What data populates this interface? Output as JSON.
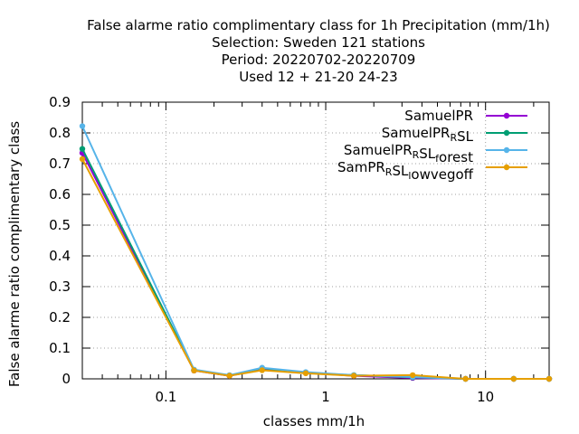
{
  "chart_data": {
    "type": "line",
    "title_lines": [
      "False alarme ratio complimentary class  for 1h Precipitation (mm/1h)",
      "Selection: Sweden    121 stations",
      "Period: 20220702-20220709",
      "Used  12 + 21-20 24-23"
    ],
    "xlabel": "classes mm/1h",
    "ylabel": "False alarme ratio complimentary class",
    "xscale": "log",
    "xlim": [
      0.03,
      25
    ],
    "ylim": [
      0,
      0.9
    ],
    "xticks": [
      {
        "value": 0.1,
        "label": "0.1"
      },
      {
        "value": 1,
        "label": "1"
      },
      {
        "value": 10,
        "label": "10"
      }
    ],
    "yticks": [
      {
        "value": 0,
        "label": "0"
      },
      {
        "value": 0.1,
        "label": "0.1"
      },
      {
        "value": 0.2,
        "label": "0.2"
      },
      {
        "value": 0.3,
        "label": "0.3"
      },
      {
        "value": 0.4,
        "label": "0.4"
      },
      {
        "value": 0.5,
        "label": "0.5"
      },
      {
        "value": 0.6,
        "label": "0.6"
      },
      {
        "value": 0.7,
        "label": "0.7"
      },
      {
        "value": 0.8,
        "label": "0.8"
      },
      {
        "value": 0.9,
        "label": "0.9"
      }
    ],
    "grid": true,
    "legend_position": "top-right",
    "series": [
      {
        "name": "SamuelPR",
        "legend_base": "SamuelPR",
        "legend_sub": "",
        "legend_tail": "",
        "legend_sub2": "",
        "legend_tail2": "",
        "color": "#9400d3",
        "x": [
          0.03,
          0.15,
          0.25,
          0.4,
          0.75,
          1.5,
          3.5,
          7.5,
          15,
          25
        ],
        "y": [
          0.735,
          0.027,
          0.01,
          0.03,
          0.02,
          0.01,
          0.003,
          0.0,
          0.0,
          0.0
        ]
      },
      {
        "name": "SamuelPR_RSL",
        "legend_base": "SamuelPR",
        "legend_sub": "R",
        "legend_tail": "SL",
        "legend_sub2": "",
        "legend_tail2": "",
        "color": "#009e73",
        "x": [
          0.03,
          0.15,
          0.25,
          0.4,
          0.75,
          1.5,
          3.5,
          7.5,
          15,
          25
        ],
        "y": [
          0.748,
          0.028,
          0.011,
          0.035,
          0.02,
          0.012,
          0.005,
          0.0,
          0.0,
          0.0
        ]
      },
      {
        "name": "SamuelPR_RSL_forest",
        "legend_base": "SamuelPR",
        "legend_sub": "R",
        "legend_tail": "SL",
        "legend_sub2": "f",
        "legend_tail2": "orest",
        "color": "#56b4e9",
        "x": [
          0.03,
          0.15,
          0.25,
          0.4,
          0.75,
          1.5,
          3.5,
          7.5,
          15,
          25
        ],
        "y": [
          0.822,
          0.03,
          0.012,
          0.036,
          0.022,
          0.012,
          0.006,
          0.0,
          0.0,
          0.0
        ]
      },
      {
        "name": "SamPR_RSL_lowvegoff",
        "legend_base": "SamPR",
        "legend_sub": "R",
        "legend_tail": "SL",
        "legend_sub2": "l",
        "legend_tail2": "owvegoff",
        "color": "#e69f00",
        "x": [
          0.03,
          0.15,
          0.25,
          0.4,
          0.75,
          1.5,
          3.5,
          7.5,
          15,
          25
        ],
        "y": [
          0.715,
          0.027,
          0.01,
          0.028,
          0.018,
          0.01,
          0.012,
          0.0,
          0.0,
          0.0
        ]
      }
    ]
  }
}
